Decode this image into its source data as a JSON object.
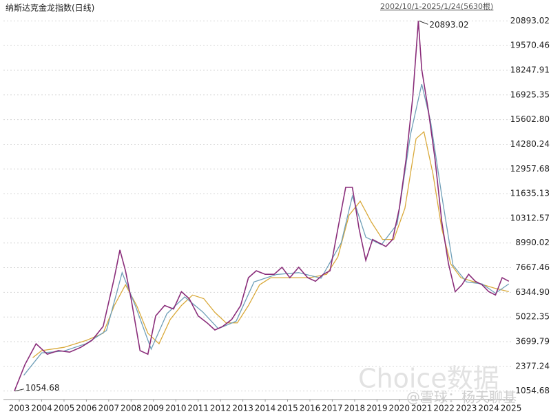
{
  "chart_data": {
    "type": "line",
    "title": "纳斯达克金龙指数(日线)",
    "subtitle": "2002/10/1-2025/1/24(5630根)",
    "watermarks": [
      "Choice数据",
      "@雪球：杨天聊基"
    ],
    "xlim": [
      2002.29,
      2025.09
    ],
    "xticks": [
      2003,
      2004,
      2005,
      2006,
      2007,
      2008,
      2009,
      2010,
      2011,
      2012,
      2013,
      2014,
      2015,
      2016,
      2017,
      2018,
      2019,
      2020,
      2021,
      2022,
      2023,
      2024,
      2025
    ],
    "ylim": [
      600,
      21200
    ],
    "yticks": [
      20893.02,
      19570.46,
      18247.91,
      16925.35,
      {
        "value": 15602.8,
        "label": "15602.80"
      },
      14280.24,
      12957.68,
      11635.13,
      10312.57,
      8990.02,
      7667.46,
      {
        "value": 6344.9,
        "label": "6344.90"
      },
      5022.35,
      3699.79,
      2377.24,
      1054.68
    ],
    "grid": true,
    "annotations": [
      {
        "x": 2020.85,
        "value": 20893.02
      },
      {
        "x": 2002.78,
        "value": 1054.68
      }
    ],
    "series": [
      {
        "color": "#8a2d7a",
        "x": [
          2002.78,
          2003.25,
          2003.75,
          2004.25,
          2004.75,
          2005.25,
          2005.75,
          2006.25,
          2006.75,
          2007.25,
          2007.5,
          2007.75,
          2008.0,
          2008.4,
          2008.75,
          2009.1,
          2009.5,
          2009.9,
          2010.25,
          2010.6,
          2011.0,
          2011.4,
          2011.75,
          2012.1,
          2012.5,
          2012.9,
          2013.25,
          2013.6,
          2014.0,
          2014.4,
          2014.75,
          2015.1,
          2015.5,
          2015.9,
          2016.25,
          2016.6,
          2016.9,
          2017.25,
          2017.6,
          2017.9,
          2018.2,
          2018.5,
          2018.8,
          2019.1,
          2019.4,
          2019.7,
          2020.0,
          2020.3,
          2020.6,
          2020.85,
          2021.0,
          2021.3,
          2021.6,
          2021.9,
          2022.2,
          2022.5,
          2022.8,
          2023.1,
          2023.4,
          2023.7,
          2024.0,
          2024.3,
          2024.6,
          2024.9
        ],
        "values": [
          1054.68,
          2470,
          3590,
          3030,
          3220,
          3140,
          3400,
          3770,
          4520,
          7130,
          8620,
          7500,
          6010,
          3220,
          3030,
          5080,
          5640,
          5450,
          6380,
          6010,
          5080,
          4710,
          4330,
          4520,
          4890,
          5640,
          7130,
          7500,
          7310,
          7310,
          7690,
          7130,
          7690,
          7130,
          6940,
          7310,
          7500,
          9740,
          11970,
          11970,
          9740,
          8060,
          9180,
          8990,
          8800,
          9180,
          10850,
          13460,
          16810,
          20893.02,
          18300,
          16070,
          13460,
          10110,
          7870,
          6380,
          6750,
          7310,
          6940,
          6750,
          6380,
          6200,
          7130,
          6940
        ]
      },
      {
        "color": "#6f9fb8",
        "x": [
          2003.2,
          2004.0,
          2005.0,
          2006.0,
          2006.9,
          2007.6,
          2008.2,
          2008.9,
          2009.6,
          2010.4,
          2011.2,
          2011.9,
          2012.7,
          2013.5,
          2014.5,
          2015.5,
          2016.5,
          2017.4,
          2017.9,
          2018.5,
          2019.2,
          2019.9,
          2020.5,
          2021.0,
          2021.4,
          2021.9,
          2022.4,
          2023.0,
          2023.7,
          2024.3,
          2024.9
        ],
        "values": [
          1900,
          3100,
          3200,
          3600,
          4300,
          7400,
          5600,
          3300,
          5200,
          6100,
          5300,
          4400,
          4800,
          6900,
          7300,
          7400,
          7100,
          9000,
          11500,
          9300,
          8900,
          10000,
          14800,
          17500,
          15500,
          11500,
          7800,
          6900,
          6800,
          6300,
          6800
        ]
      },
      {
        "color": "#d9a93a",
        "x": [
          2003.6,
          2004.0,
          2005.0,
          2006.0,
          2006.75,
          2007.25,
          2007.75,
          2008.25,
          2008.75,
          2009.25,
          2009.75,
          2010.25,
          2010.75,
          2011.25,
          2011.75,
          2012.25,
          2012.75,
          2013.25,
          2013.75,
          2014.25,
          2015.0,
          2016.0,
          2016.75,
          2017.25,
          2017.75,
          2018.25,
          2018.75,
          2019.25,
          2019.75,
          2020.25,
          2020.75,
          2021.1,
          2021.5,
          2021.9,
          2022.3,
          2022.75,
          2023.25,
          2023.75,
          2024.25,
          2024.9
        ],
        "values": [
          2840,
          3220,
          3400,
          3770,
          4150,
          5640,
          6750,
          5640,
          4150,
          3590,
          4890,
          5640,
          6200,
          6010,
          5270,
          4710,
          4710,
          5640,
          6750,
          7130,
          7130,
          7130,
          7310,
          8240,
          10480,
          11230,
          10110,
          9180,
          9180,
          10850,
          14580,
          14950,
          12720,
          9740,
          7870,
          7130,
          6940,
          6750,
          6570,
          6380
        ]
      }
    ]
  }
}
